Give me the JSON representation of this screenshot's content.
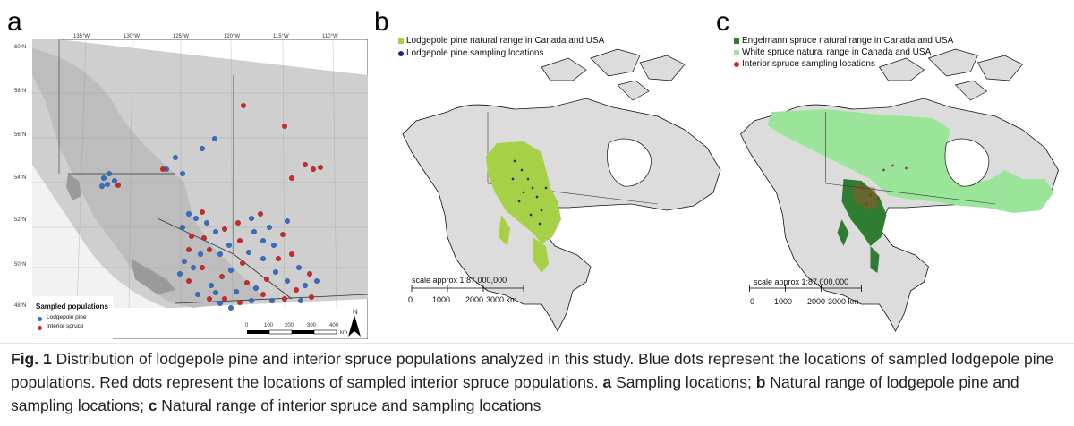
{
  "panels": {
    "a": {
      "letter": "a",
      "lon_ticks": [
        "135°W",
        "130°W",
        "125°W",
        "120°W",
        "115°W",
        "110°W"
      ],
      "lat_ticks": [
        "60°N",
        "58°N",
        "56°N",
        "54°N",
        "52°N",
        "50°N",
        "48°N"
      ],
      "legend_title": "Sampled populations",
      "legend_items": [
        {
          "label": "Lodgepole pine",
          "color": "#2f6fcf"
        },
        {
          "label": "Interior spruce",
          "color": "#d42525"
        }
      ],
      "scale_ticks": [
        "0",
        "100",
        "200",
        "300",
        "400"
      ],
      "scale_unit": "km",
      "north": "N"
    },
    "b": {
      "letter": "b",
      "legend_items": [
        {
          "label": "Lodgepole pine natural range in Canada and USA",
          "color": "#a6d045"
        },
        {
          "label": "Lodgepole pine sampling locations",
          "color": "#1b2a8a"
        }
      ],
      "scale_label": "scale approx 1:87,000,000",
      "scale_ticks": [
        "0",
        "1000",
        "2000",
        "3000 km"
      ]
    },
    "c": {
      "letter": "c",
      "legend_items": [
        {
          "label": "Engelmann spruce natural range in Canada and USA",
          "color": "#2f7d32"
        },
        {
          "label": "White spruce natural range in Canada and USA",
          "color": "#9be59b"
        },
        {
          "label": "Interior spruce sampling locations",
          "color": "#d42525"
        }
      ],
      "scale_label": "scale approx 1:87,000,000",
      "scale_ticks": [
        "0",
        "1000",
        "2000",
        "3000 km"
      ]
    }
  },
  "caption": {
    "fig_label": "Fig. 1",
    "intro": " Distribution of lodgepole pine and interior spruce populations analyzed in this study. Blue dots represent the locations of sampled lodgepole pine populations. Red dots represent the locations of sampled interior spruce populations. ",
    "a_letter": "a",
    "a_text": " Sampling locations; ",
    "b_letter": "b",
    "b_text": " Natural range of lodgepole pine and sampling locations; ",
    "c_letter": "c",
    "c_text": " Natural range of interior spruce and sampling locations"
  }
}
